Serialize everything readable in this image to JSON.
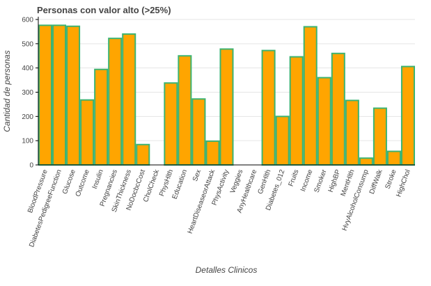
{
  "chart_data": {
    "type": "bar",
    "title": "Personas con valor alto (>25%)",
    "xlabel": "Detalles Clinicos",
    "ylabel": "Cantidad de personas",
    "ylim": [
      0,
      600
    ],
    "yticks": [
      0,
      100,
      200,
      300,
      400,
      500,
      600
    ],
    "grid": true,
    "colors": {
      "fill": "#FFA500",
      "stroke": "#3CB371"
    },
    "categories": [
      "BloodPressure",
      "DiabetesPedigreeFunction",
      "Glucose",
      "Outcome",
      "Insulin",
      "Pregnancies",
      "SkinThickness",
      "NoDocbcCost",
      "CholCheck",
      "PhysHlth",
      "Education",
      "Sex",
      "HeartDiseaseorAttack",
      "PhysActivity",
      "Veggies",
      "AnyHealthcare",
      "GenHlth",
      "Diabetes_012",
      "Fruits",
      "Income",
      "Smoker",
      "HighBP",
      "MentHlth",
      "HvyAlcoholConsump",
      "DiffWalk",
      "Stroke",
      "HighChol"
    ],
    "values": [
      576,
      576,
      572,
      268,
      394,
      522,
      540,
      84,
      0,
      338,
      450,
      272,
      98,
      478,
      0,
      0,
      472,
      200,
      446,
      570,
      360,
      460,
      266,
      28,
      234,
      56,
      406
    ]
  }
}
